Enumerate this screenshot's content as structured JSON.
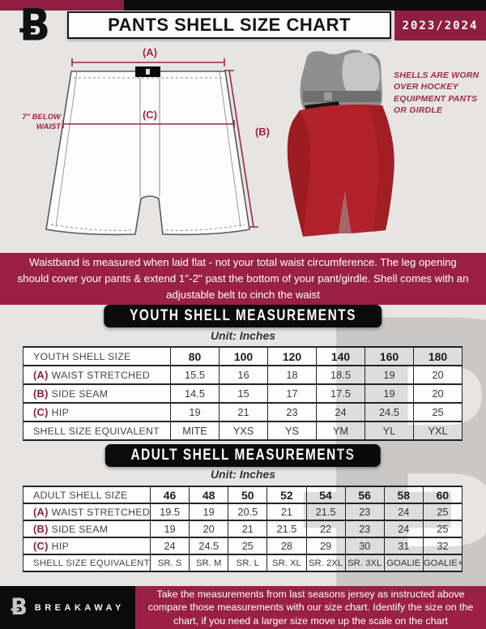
{
  "header": {
    "logo_glyph": "Ƀ",
    "title": "PANTS SHELL SIZE CHART",
    "season": "2023/2024"
  },
  "diagram": {
    "label_a": "(A)",
    "label_b": "(B)",
    "label_c": "(C)",
    "waist_note_line1": "7'' BELOW",
    "waist_note_line2": "WAIST",
    "photo_note": "SHELLS ARE WORN OVER HOCKEY EQUIPMENT PANTS OR GIRDLE"
  },
  "measure_note": "Waistband is measured when laid flat - not your total waist circumference. The leg opening should cover your pants & extend 1''-2'' past the bottom of your pant/girdle. Shell comes with an adjustable belt to cinch the waist",
  "youth": {
    "banner": "YOUTH SHELL MEASUREMENTS",
    "unit": "Unit: Inches",
    "table": {
      "header_label": "YOUTH SHELL SIZE",
      "sizes": [
        "80",
        "100",
        "120",
        "140",
        "160",
        "180"
      ],
      "rows": [
        {
          "prefix": "(A)",
          "label": "WAIST STRETCHED",
          "values": [
            "15.5",
            "16",
            "18",
            "18.5",
            "19",
            "20"
          ]
        },
        {
          "prefix": "(B)",
          "label": "SIDE SEAM",
          "values": [
            "14.5",
            "15",
            "17",
            "17.5",
            "19",
            "20"
          ]
        },
        {
          "prefix": "(C)",
          "label": "HIP",
          "values": [
            "19",
            "21",
            "23",
            "24",
            "24.5",
            "25"
          ]
        },
        {
          "prefix": "",
          "label": "SHELL SIZE EQUIVALENT",
          "values": [
            "MITE",
            "YXS",
            "YS",
            "YM",
            "YL",
            "YXL"
          ]
        }
      ]
    }
  },
  "adult": {
    "banner": "ADULT SHELL MEASUREMENTS",
    "unit": "Unit: Inches",
    "table": {
      "header_label": "ADULT SHELL SIZE",
      "sizes": [
        "46",
        "48",
        "50",
        "52",
        "54",
        "56",
        "58",
        "60"
      ],
      "rows": [
        {
          "prefix": "(A)",
          "label": "WAIST STRETCHED",
          "values": [
            "19.5",
            "19",
            "20.5",
            "21",
            "21.5",
            "23",
            "24",
            "25"
          ]
        },
        {
          "prefix": "(B)",
          "label": "SIDE SEAM",
          "values": [
            "19",
            "20",
            "21",
            "21.5",
            "22",
            "23",
            "24",
            "25"
          ]
        },
        {
          "prefix": "(C)",
          "label": "HIP",
          "values": [
            "24",
            "24.5",
            "25",
            "28",
            "29",
            "30",
            "31",
            "32"
          ]
        },
        {
          "prefix": "",
          "label": "SHELL SIZE EQUIVALENT",
          "values": [
            "SR. S",
            "SR. M",
            "SR. L",
            "SR. XL",
            "SR. 2XL",
            "SR. 3XL",
            "GOALIE",
            "GOALIE+"
          ]
        }
      ]
    }
  },
  "watermark_glyph": "Ƀ",
  "footer": {
    "brand": "BREAKAWAY",
    "note": "Take the measurements from last seasons jersey as instructed above compare those measurements with our size chart. Identify the size on the chart, if you need a larger size move up the scale on the chart"
  },
  "colors": {
    "burgundy": "#8e1f40",
    "banner_red": "#9a2145",
    "accent_red": "#a32347",
    "shell_red": "#b2222a",
    "page_bg": "#e6e5e4",
    "black": "#0b0b0b"
  }
}
